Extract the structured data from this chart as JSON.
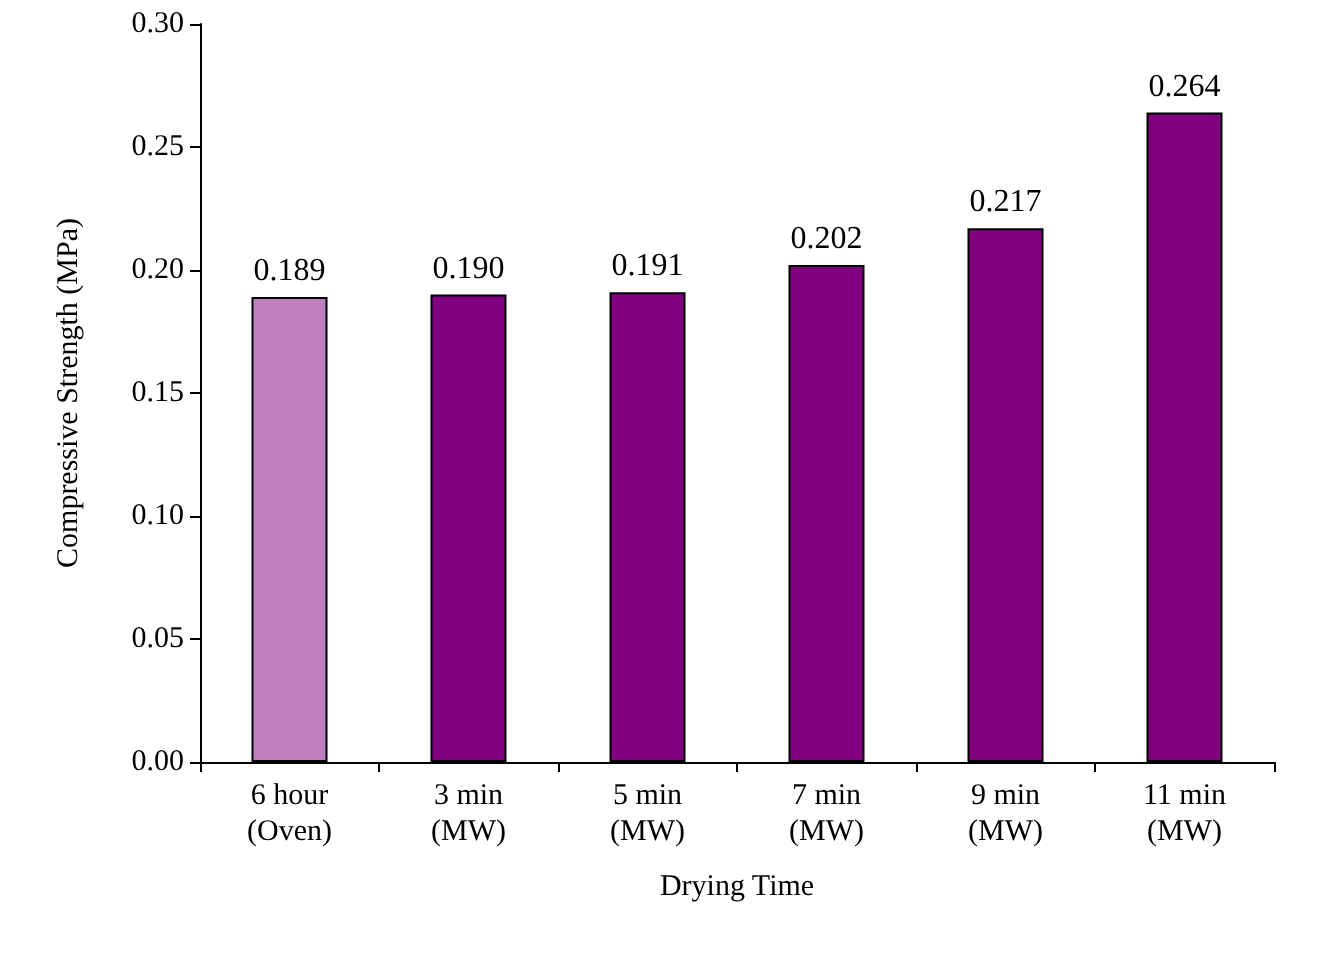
{
  "chart_data": {
    "type": "bar",
    "xlabel": "Drying Time",
    "ylabel": "Compressive Strength (MPa)",
    "categories": [
      "6 hour\n(Oven)",
      "3 min\n(MW)",
      "5 min\n(MW)",
      "7 min\n(MW)",
      "9 min\n(MW)",
      "11 min\n(MW)"
    ],
    "values": [
      0.189,
      0.19,
      0.191,
      0.202,
      0.217,
      0.264
    ],
    "value_labels": [
      "0.189",
      "0.190",
      "0.191",
      "0.202",
      "0.217",
      "0.264"
    ],
    "colors": [
      "#c080c0",
      "#800080",
      "#800080",
      "#800080",
      "#800080",
      "#800080"
    ],
    "ylim": [
      0,
      0.3
    ],
    "yticks": [
      {
        "value": 0,
        "label": "0.00"
      },
      {
        "value": 0.05,
        "label": "0.05"
      },
      {
        "value": 0.1,
        "label": "0.10"
      },
      {
        "value": 0.15,
        "label": "0.15"
      },
      {
        "value": 0.2,
        "label": "0.20"
      },
      {
        "value": 0.25,
        "label": "0.25"
      },
      {
        "value": 0.3,
        "label": "0.30"
      }
    ],
    "grid": false
  }
}
